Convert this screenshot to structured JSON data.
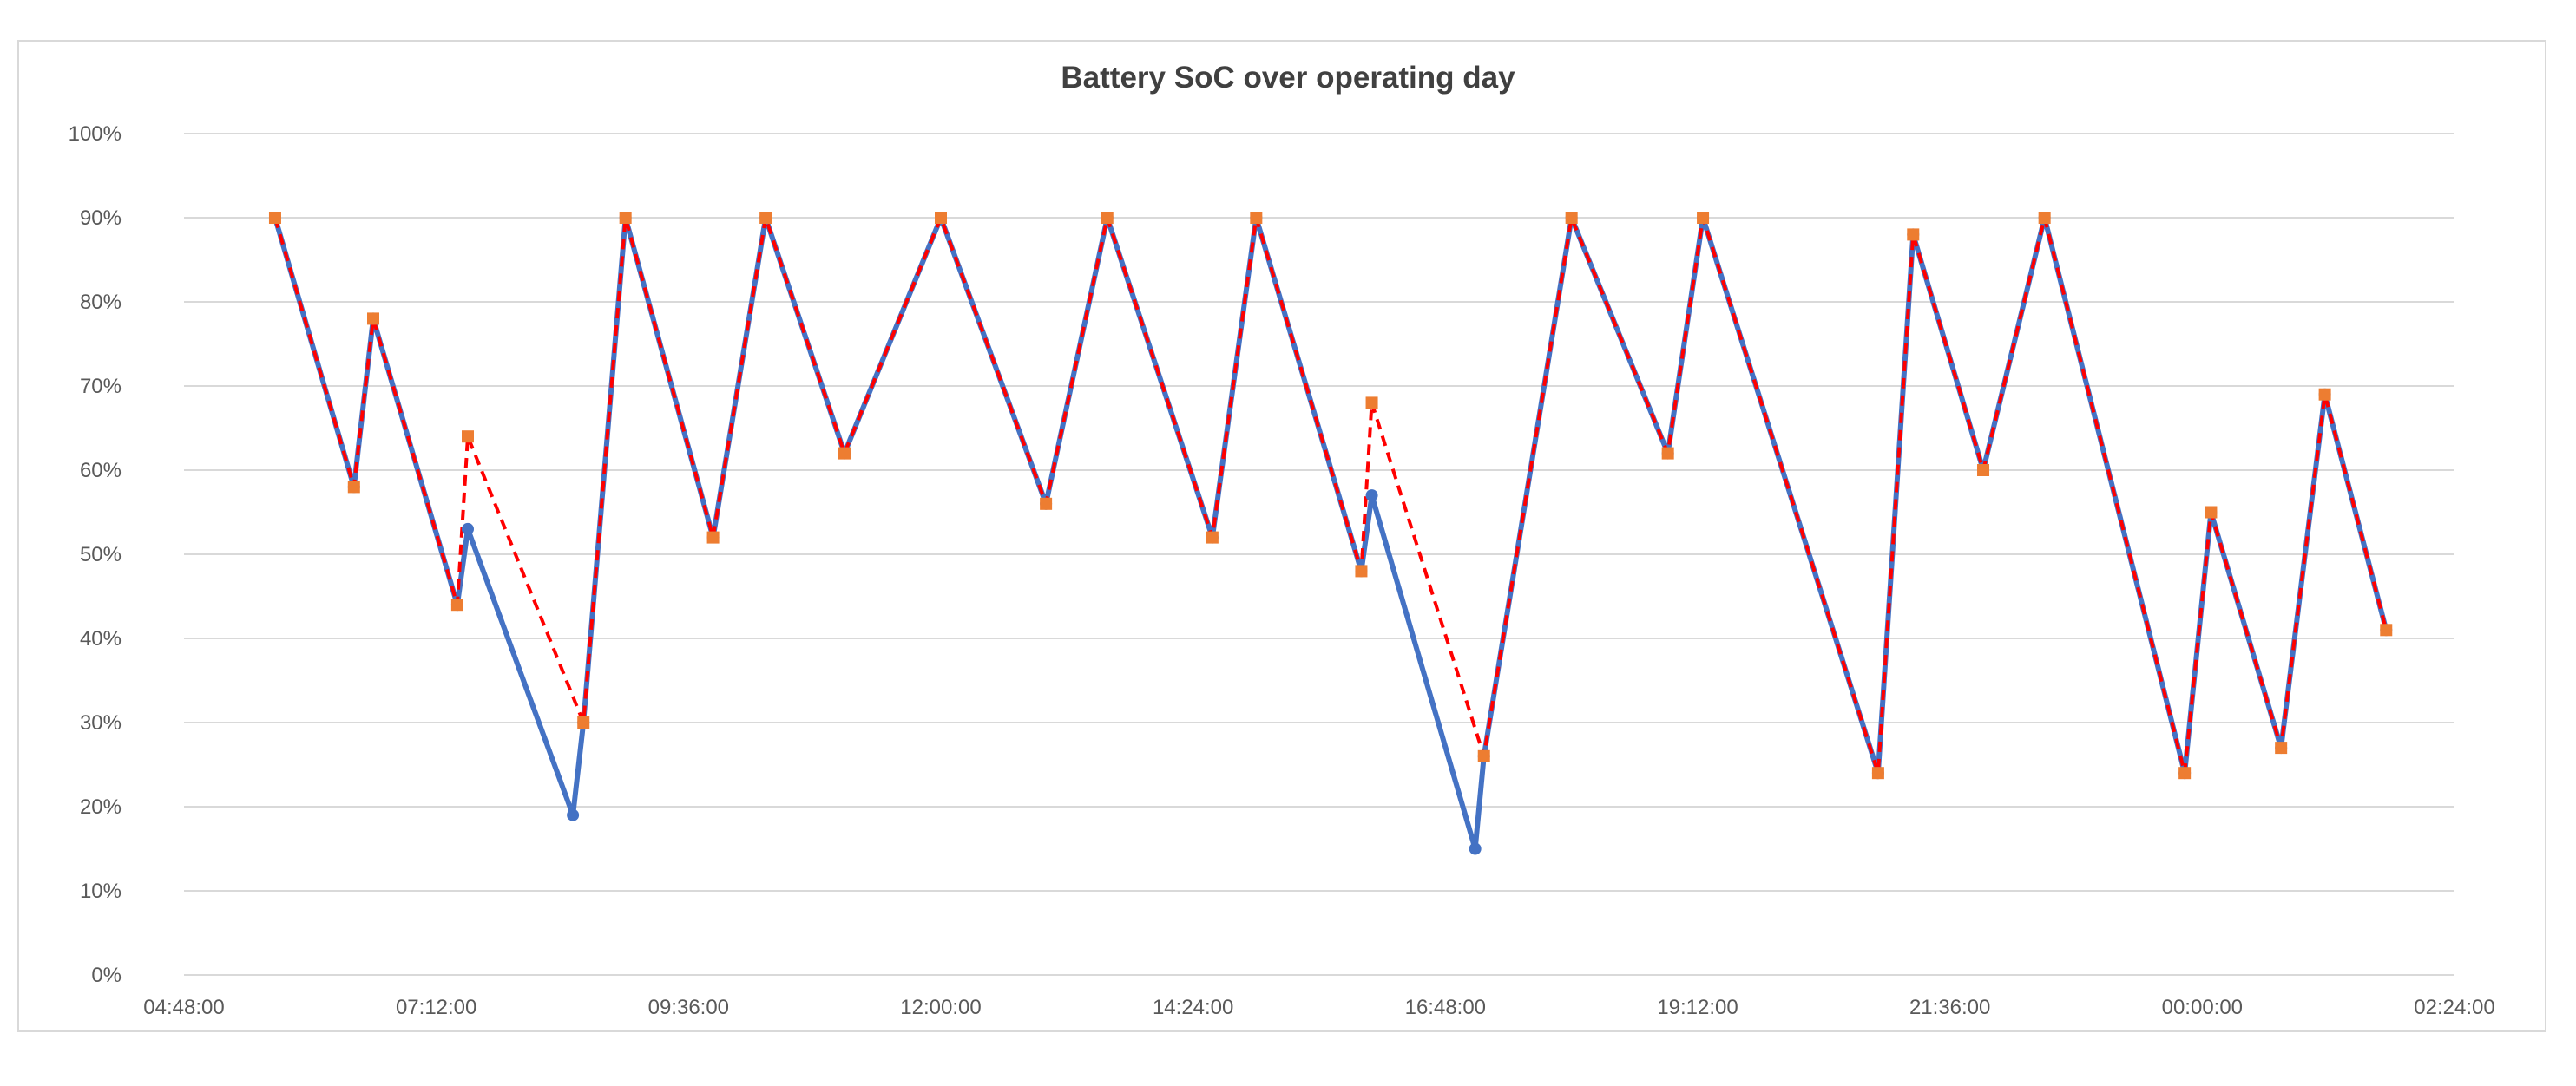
{
  "chart_data": {
    "type": "line",
    "title": "Battery SoC over operating day",
    "xlabel": "",
    "ylabel": "",
    "y_ticks": [
      "0%",
      "10%",
      "20%",
      "30%",
      "40%",
      "50%",
      "60%",
      "70%",
      "80%",
      "90%",
      "100%"
    ],
    "ylim": [
      0,
      100
    ],
    "x_ticks": [
      "04:48:00",
      "07:12:00",
      "09:36:00",
      "12:00:00",
      "14:24:00",
      "16:48:00",
      "19:12:00",
      "21:36:00",
      "00:00:00",
      "02:24:00"
    ],
    "xlim": [
      "04:48",
      "02:24 (+1 day)"
    ],
    "grid": true,
    "legend": "none",
    "series": [
      {
        "color": "#4472c4",
        "style": "solid",
        "marker": "circle",
        "points": [
          [
            "05:40",
            90
          ],
          [
            "06:25",
            58
          ],
          [
            "06:36",
            78
          ],
          [
            "07:24",
            44
          ],
          [
            "07:30",
            53
          ],
          [
            "08:30",
            19
          ],
          [
            "08:36",
            30
          ],
          [
            "09:00",
            90
          ],
          [
            "09:50",
            52
          ],
          [
            "10:20",
            90
          ],
          [
            "11:05",
            62
          ],
          [
            "12:00",
            90
          ],
          [
            "13:00",
            56
          ],
          [
            "13:35",
            90
          ],
          [
            "14:35",
            52
          ],
          [
            "15:00",
            90
          ],
          [
            "16:00",
            48
          ],
          [
            "16:06",
            57
          ],
          [
            "17:05",
            15
          ],
          [
            "17:10",
            26
          ],
          [
            "18:00",
            90
          ],
          [
            "18:55",
            62
          ],
          [
            "19:15",
            90
          ],
          [
            "20:55",
            24
          ],
          [
            "21:15",
            88
          ],
          [
            "21:55",
            60
          ],
          [
            "22:30",
            90
          ],
          [
            "23:50",
            24
          ],
          [
            "00:05",
            55
          ],
          [
            "00:45",
            27
          ],
          [
            "01:10",
            69
          ],
          [
            "01:45",
            41
          ]
        ]
      },
      {
        "color": "#ff0000",
        "style": "dashed",
        "marker": "square",
        "marker_color": "#ed7d31",
        "points": [
          [
            "05:40",
            90
          ],
          [
            "06:25",
            58
          ],
          [
            "06:36",
            78
          ],
          [
            "07:24",
            44
          ],
          [
            "07:30",
            64
          ],
          [
            "08:36",
            30
          ],
          [
            "09:00",
            90
          ],
          [
            "09:50",
            52
          ],
          [
            "10:20",
            90
          ],
          [
            "11:05",
            62
          ],
          [
            "12:00",
            90
          ],
          [
            "13:00",
            56
          ],
          [
            "13:35",
            90
          ],
          [
            "14:35",
            52
          ],
          [
            "15:00",
            90
          ],
          [
            "16:00",
            48
          ],
          [
            "16:06",
            68
          ],
          [
            "17:10",
            26
          ],
          [
            "18:00",
            90
          ],
          [
            "18:55",
            62
          ],
          [
            "19:15",
            90
          ],
          [
            "20:55",
            24
          ],
          [
            "21:15",
            88
          ],
          [
            "21:55",
            60
          ],
          [
            "22:30",
            90
          ],
          [
            "23:50",
            24
          ],
          [
            "00:05",
            55
          ],
          [
            "00:45",
            27
          ],
          [
            "01:10",
            69
          ],
          [
            "01:45",
            41
          ]
        ]
      }
    ]
  },
  "colors": {
    "grid": "#d9d9d9",
    "axis_text": "#595959",
    "title": "#404040"
  }
}
